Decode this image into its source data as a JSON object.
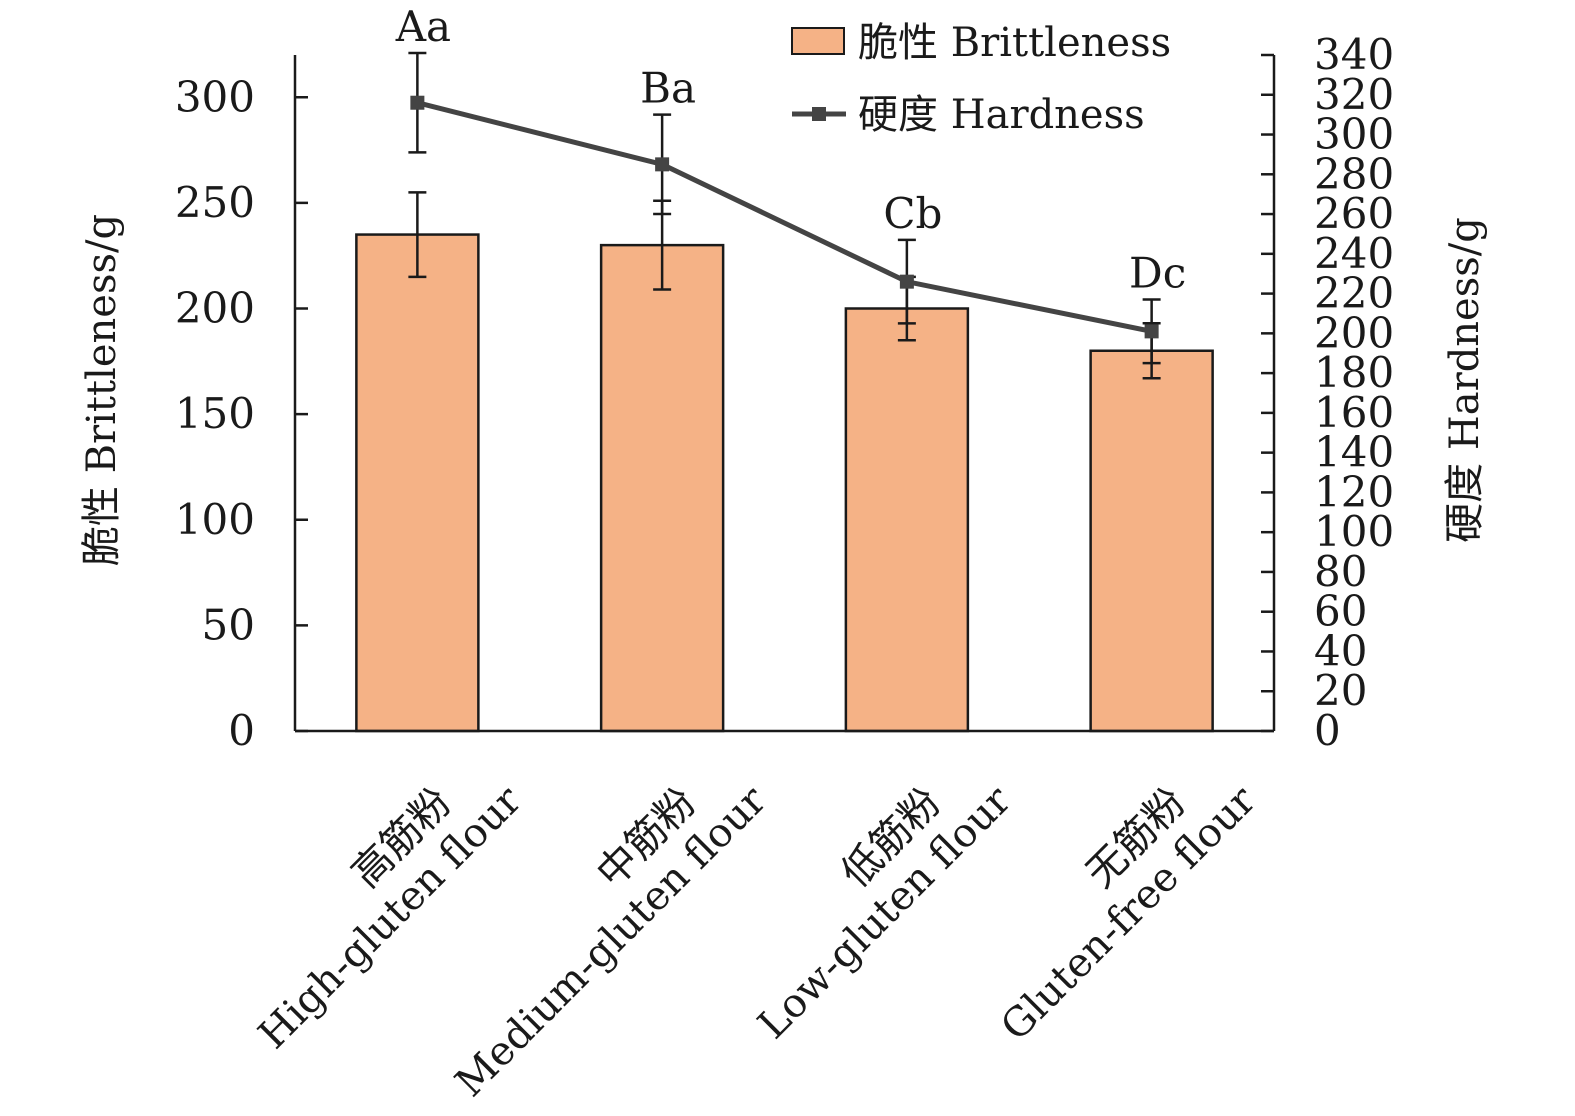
{
  "chart_data": {
    "type": "bar",
    "categories": [
      [
        "高筋粉",
        "High-gluten flour"
      ],
      [
        "中筋粉",
        "Medium-gluten flour"
      ],
      [
        "低筋粉",
        "Low-gluten flour"
      ],
      [
        "无筋粉",
        "Gluten-free flour"
      ]
    ],
    "series": [
      {
        "name": "脆性 Brittleness",
        "type": "bar",
        "axis": "left",
        "values": [
          235,
          230,
          200,
          180
        ],
        "errors": [
          20,
          21,
          15,
          13
        ]
      },
      {
        "name": "硬度 Hardness",
        "type": "line",
        "axis": "right",
        "values": [
          316,
          285,
          226,
          201
        ],
        "errors": [
          25,
          25,
          21,
          16
        ]
      }
    ],
    "annotations": [
      "Aa",
      "Ba",
      "Cb",
      "Dc"
    ],
    "ylabel": "脆性 Brittleness/g",
    "y2label": "硬度 Hardness/g",
    "ylim": [
      0,
      320
    ],
    "yticks": [
      0,
      50,
      100,
      150,
      200,
      250,
      300
    ],
    "y2lim": [
      0,
      340
    ],
    "y2ticks": [
      0,
      20,
      40,
      60,
      80,
      100,
      120,
      140,
      160,
      180,
      200,
      220,
      240,
      260,
      280,
      300,
      320,
      340
    ],
    "legend": "top-right",
    "grid": false
  },
  "colors": {
    "bar_fill": "#f5b286",
    "bar_stroke": "#1a1a1a",
    "line": "#444444",
    "axis": "#1a1a1a"
  }
}
